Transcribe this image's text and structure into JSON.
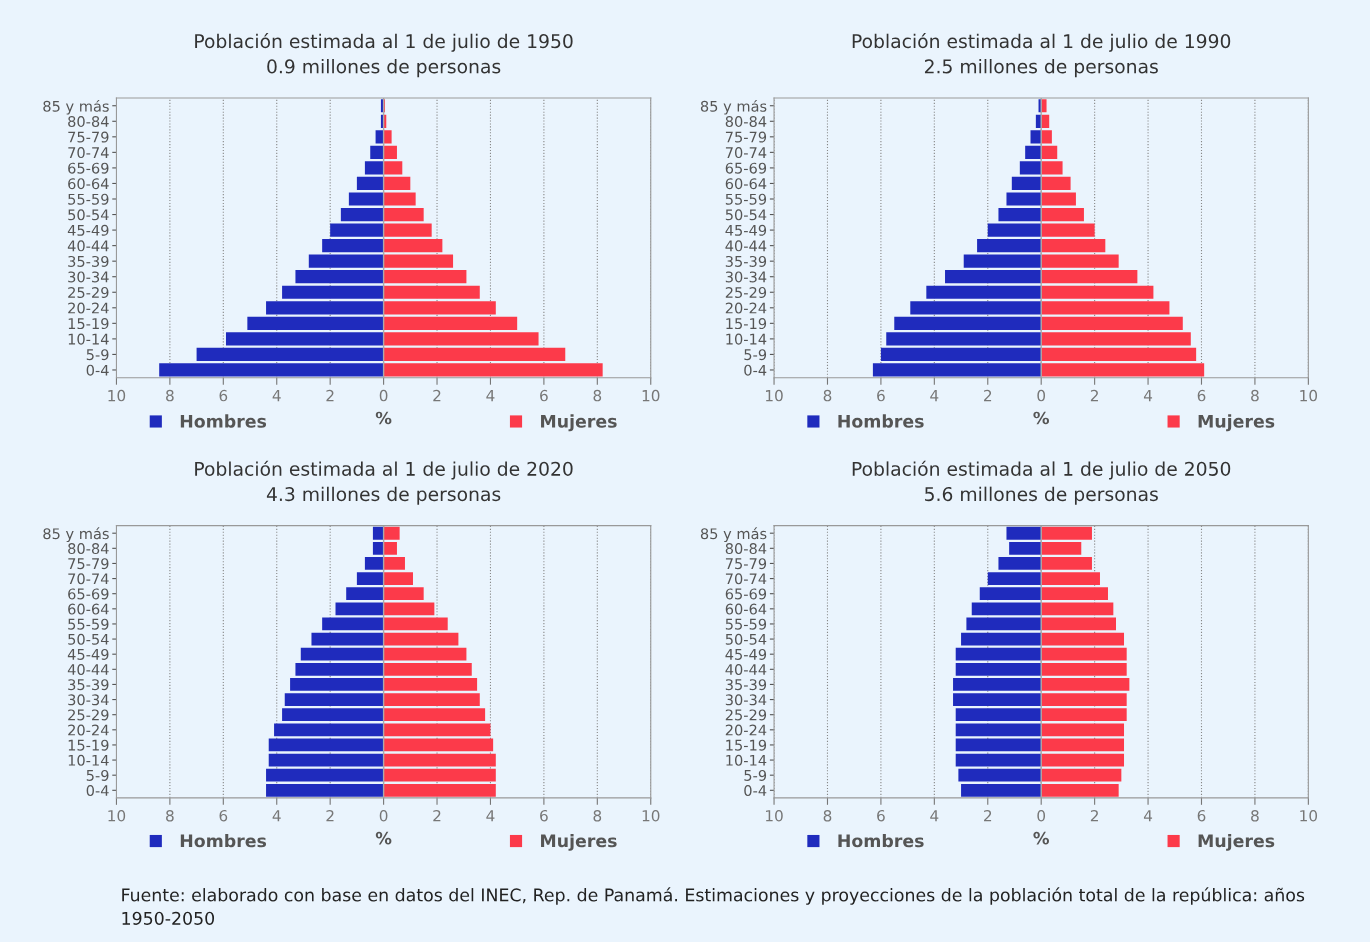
{
  "chart_data": [
    {
      "type": "bar",
      "orientation": "horizontal",
      "stacked": true,
      "title": "Población estimada al 1 de julio de 1950",
      "subtitle": "0.9 millones de personas",
      "xlabel": "%",
      "categories": [
        "85 y más",
        "80-84",
        "75-79",
        "70-74",
        "65-69",
        "60-64",
        "55-59",
        "50-54",
        "45-49",
        "40-44",
        "35-39",
        "30-34",
        "25-29",
        "20-24",
        "15-19",
        "10-14",
        "5-9",
        "0-4"
      ],
      "series": [
        {
          "name": "Hombres",
          "color": "#1f2bbd",
          "values": [
            -0.1,
            -0.1,
            -0.3,
            -0.5,
            -0.7,
            -1.0,
            -1.3,
            -1.6,
            -2.0,
            -2.3,
            -2.8,
            -3.3,
            -3.8,
            -4.4,
            -5.1,
            -5.9,
            -7.0,
            -8.4
          ]
        },
        {
          "name": "Mujeres",
          "color": "#fc3a4a",
          "values": [
            0.05,
            0.1,
            0.3,
            0.5,
            0.7,
            1.0,
            1.2,
            1.5,
            1.8,
            2.2,
            2.6,
            3.1,
            3.6,
            4.2,
            5.0,
            5.8,
            6.8,
            8.2
          ]
        }
      ],
      "xlim": [
        -10,
        10
      ],
      "xticks": [
        {
          "value": -10,
          "label": "10"
        },
        {
          "value": -8,
          "label": "8"
        },
        {
          "value": -6,
          "label": "6"
        },
        {
          "value": -4,
          "label": "4"
        },
        {
          "value": -2,
          "label": "2"
        },
        0,
        2,
        4,
        6,
        8,
        10
      ],
      "grid": "x",
      "legend": "bottom"
    },
    {
      "type": "bar",
      "orientation": "horizontal",
      "stacked": true,
      "title": "Población estimada al 1 de julio de 1990",
      "subtitle": "2.5 millones de personas",
      "xlabel": "%",
      "categories": [
        "85 y más",
        "80-84",
        "75-79",
        "70-74",
        "65-69",
        "60-64",
        "55-59",
        "50-54",
        "45-49",
        "40-44",
        "35-39",
        "30-34",
        "25-29",
        "20-24",
        "15-19",
        "10-14",
        "5-9",
        "0-4"
      ],
      "series": [
        {
          "name": "Hombres",
          "color": "#1f2bbd",
          "values": [
            -0.1,
            -0.2,
            -0.4,
            -0.6,
            -0.8,
            -1.1,
            -1.3,
            -1.6,
            -2.0,
            -2.4,
            -2.9,
            -3.6,
            -4.3,
            -4.9,
            -5.5,
            -5.8,
            -6.0,
            -6.3
          ]
        },
        {
          "name": "Mujeres",
          "color": "#fc3a4a",
          "values": [
            0.2,
            0.3,
            0.4,
            0.6,
            0.8,
            1.1,
            1.3,
            1.6,
            2.0,
            2.4,
            2.9,
            3.6,
            4.2,
            4.8,
            5.3,
            5.6,
            5.8,
            6.1
          ]
        }
      ],
      "xlim": [
        -10,
        10
      ],
      "xticks": [
        {
          "value": -10,
          "label": "10"
        },
        {
          "value": -8,
          "label": "8"
        },
        {
          "value": -6,
          "label": "6"
        },
        {
          "value": -4,
          "label": "4"
        },
        {
          "value": -2,
          "label": "2"
        },
        0,
        2,
        4,
        6,
        8,
        10
      ],
      "grid": "x",
      "legend": "bottom"
    },
    {
      "type": "bar",
      "orientation": "horizontal",
      "stacked": true,
      "title": "Población estimada al 1 de julio de 2020",
      "subtitle": "4.3 millones de personas",
      "xlabel": "%",
      "categories": [
        "85 y más",
        "80-84",
        "75-79",
        "70-74",
        "65-69",
        "60-64",
        "55-59",
        "50-54",
        "45-49",
        "40-44",
        "35-39",
        "30-34",
        "25-29",
        "20-24",
        "15-19",
        "10-14",
        "5-9",
        "0-4"
      ],
      "series": [
        {
          "name": "Hombres",
          "color": "#1f2bbd",
          "values": [
            -0.4,
            -0.4,
            -0.7,
            -1.0,
            -1.4,
            -1.8,
            -2.3,
            -2.7,
            -3.1,
            -3.3,
            -3.5,
            -3.7,
            -3.8,
            -4.1,
            -4.3,
            -4.3,
            -4.4,
            -4.4
          ]
        },
        {
          "name": "Mujeres",
          "color": "#fc3a4a",
          "values": [
            0.6,
            0.5,
            0.8,
            1.1,
            1.5,
            1.9,
            2.4,
            2.8,
            3.1,
            3.3,
            3.5,
            3.6,
            3.8,
            4.0,
            4.1,
            4.2,
            4.2,
            4.2
          ]
        }
      ],
      "xlim": [
        -10,
        10
      ],
      "xticks": [
        {
          "value": -10,
          "label": "10"
        },
        {
          "value": -8,
          "label": "8"
        },
        {
          "value": -6,
          "label": "6"
        },
        {
          "value": -4,
          "label": "4"
        },
        {
          "value": -2,
          "label": "2"
        },
        0,
        2,
        4,
        6,
        8,
        10
      ],
      "grid": "x",
      "legend": "bottom"
    },
    {
      "type": "bar",
      "orientation": "horizontal",
      "stacked": true,
      "title": "Población estimada al 1 de julio de 2050",
      "subtitle": "5.6 millones de personas",
      "xlabel": "%",
      "categories": [
        "85 y más",
        "80-84",
        "75-79",
        "70-74",
        "65-69",
        "60-64",
        "55-59",
        "50-54",
        "45-49",
        "40-44",
        "35-39",
        "30-34",
        "25-29",
        "20-24",
        "15-19",
        "10-14",
        "5-9",
        "0-4"
      ],
      "series": [
        {
          "name": "Hombres",
          "color": "#1f2bbd",
          "values": [
            -1.3,
            -1.2,
            -1.6,
            -2.0,
            -2.3,
            -2.6,
            -2.8,
            -3.0,
            -3.2,
            -3.2,
            -3.3,
            -3.3,
            -3.2,
            -3.2,
            -3.2,
            -3.2,
            -3.1,
            -3.0
          ]
        },
        {
          "name": "Mujeres",
          "color": "#fc3a4a",
          "values": [
            1.9,
            1.5,
            1.9,
            2.2,
            2.5,
            2.7,
            2.8,
            3.1,
            3.2,
            3.2,
            3.3,
            3.2,
            3.2,
            3.1,
            3.1,
            3.1,
            3.0,
            2.9
          ]
        }
      ],
      "xlim": [
        -10,
        10
      ],
      "xticks": [
        {
          "value": -10,
          "label": "10"
        },
        {
          "value": -8,
          "label": "8"
        },
        {
          "value": -6,
          "label": "6"
        },
        {
          "value": -4,
          "label": "4"
        },
        {
          "value": -2,
          "label": "2"
        },
        0,
        2,
        4,
        6,
        8,
        10
      ],
      "grid": "x",
      "legend": "bottom",
      "annotations": [
        "Fuente: elaborado con base en datos del INEC, Rep. de Panamá. Estimaciones y proyecciones de la población total de la república: años 1950-2050"
      ]
    }
  ]
}
